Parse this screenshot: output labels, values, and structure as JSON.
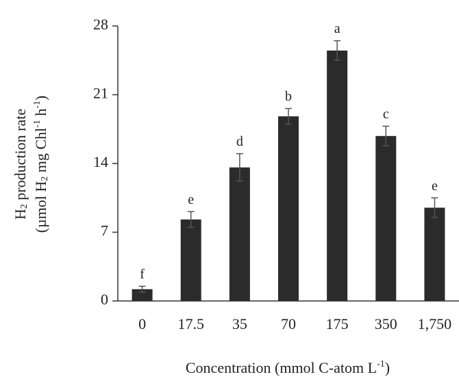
{
  "chart_data": {
    "type": "bar",
    "ylabel_lines": [
      [
        "H",
        "2",
        " production rate"
      ],
      [
        "(µmol H",
        "2",
        " mg Chl",
        "-1",
        " h",
        "-1",
        ")"
      ]
    ],
    "xlabel": [
      "Concentration (mmol C-atom L",
      "-1",
      ")"
    ],
    "categories": [
      "0",
      "17.5",
      "35",
      "70",
      "175",
      "350",
      "1,750"
    ],
    "values": [
      1.2,
      8.3,
      13.6,
      18.8,
      25.5,
      16.8,
      9.5
    ],
    "errors": [
      0.3,
      0.8,
      1.4,
      0.8,
      1.0,
      1.0,
      1.0
    ],
    "letters": [
      "f",
      "e",
      "d",
      "b",
      "a",
      "c",
      "e"
    ],
    "color": "#2b2b2b",
    "ylim": [
      0,
      28
    ],
    "yticks": [
      0,
      7,
      14,
      21,
      28
    ]
  }
}
